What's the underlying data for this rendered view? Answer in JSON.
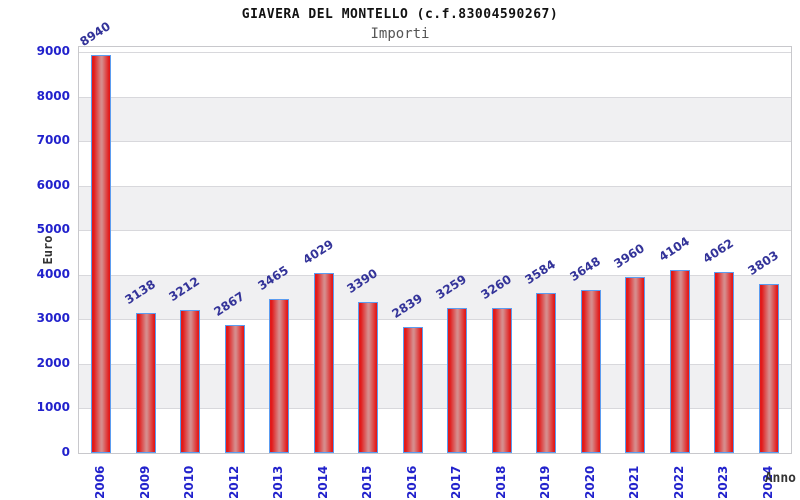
{
  "chart_data": {
    "type": "bar",
    "title": "GIAVERA DEL MONTELLO (c.f.83004590267)",
    "subtitle": "Importi",
    "xlabel": "Anno",
    "ylabel": "Euro",
    "categories": [
      "2006",
      "2009",
      "2010",
      "2012",
      "2013",
      "2014",
      "2015",
      "2016",
      "2017",
      "2018",
      "2019",
      "2020",
      "2021",
      "2022",
      "2023",
      "2024"
    ],
    "values": [
      8940,
      3138,
      3212,
      2867,
      3465,
      4029,
      3390,
      2839,
      3259,
      3260,
      3584,
      3648,
      3960,
      4104,
      4062,
      3803
    ],
    "ylim": [
      0,
      9112
    ],
    "yticks": [
      0,
      1000,
      2000,
      3000,
      4000,
      5000,
      6000,
      7000,
      8000,
      9000
    ],
    "legend": "none",
    "grid": "alternating-horizontal-bands-per-1000",
    "bar_value_labels": "rotated-above-bars",
    "colors": {
      "bar_fill": "#e21a1a",
      "bar_highlight": "#d68c8c",
      "bar_border": "#5b9cf0",
      "axis_tick_label": "#2222cc",
      "value_label": "#333399",
      "band_gray": "#f0f0f2",
      "band_white": "#ffffff",
      "grid_line": "#d8d8dc",
      "plot_border": "#c8c8cc",
      "title_color": "#111111",
      "subtitle_color": "#555555",
      "axis_title_color": "#333333"
    }
  }
}
